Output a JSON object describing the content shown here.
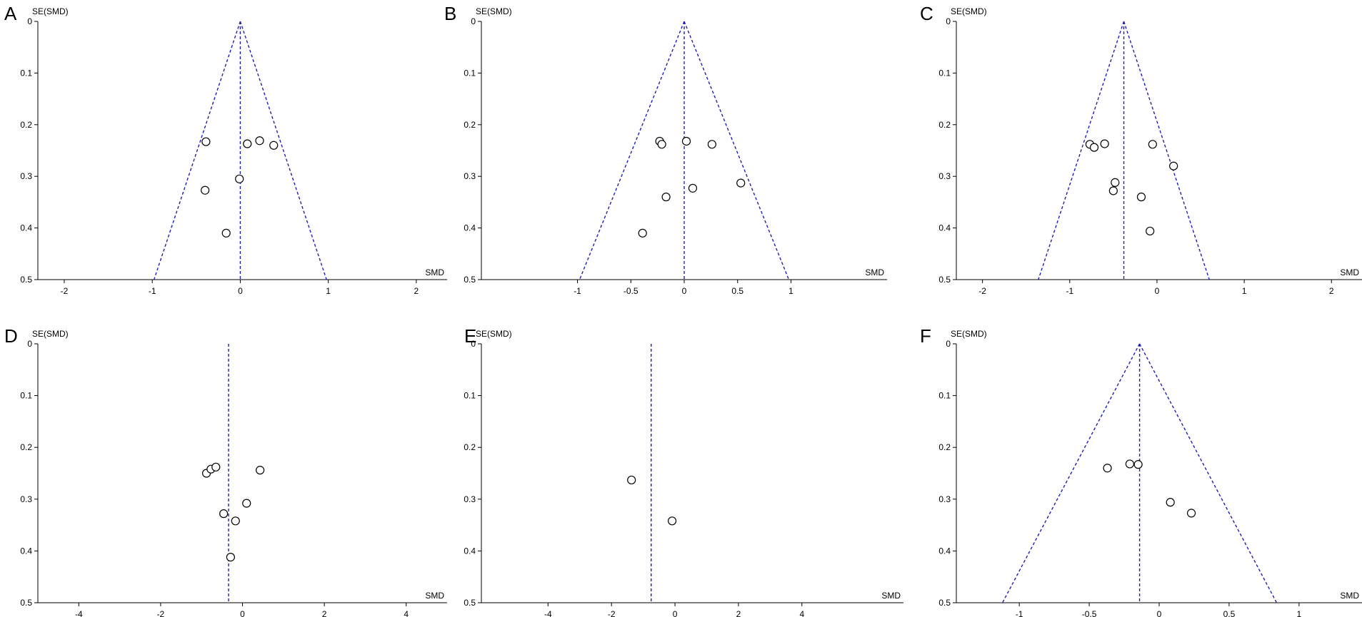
{
  "chart_data": [
    {
      "panel": "A",
      "type": "scatter",
      "xlabel": "SMD",
      "ylabel": "SE(SMD)",
      "xlim": [
        -2.3,
        2.35
      ],
      "ylim": [
        0,
        0.5
      ],
      "y_reversed": true,
      "x_ticks": [
        -2,
        -1,
        0,
        1,
        2
      ],
      "x_tick_labels": [
        "-2",
        "-1",
        "0",
        "1",
        "2"
      ],
      "y_ticks": [
        0,
        0.1,
        0.2,
        0.3,
        0.4,
        0.5
      ],
      "y_tick_labels": [
        "0",
        "0.1",
        "0.2",
        "0.3",
        "0.4",
        "0.5"
      ],
      "pooled_smd": 0.0,
      "funnel": true,
      "points": [
        [
          -0.39,
          0.233
        ],
        [
          0.08,
          0.237
        ],
        [
          0.22,
          0.231
        ],
        [
          0.38,
          0.24
        ],
        [
          -0.4,
          0.327
        ],
        [
          -0.01,
          0.305
        ],
        [
          -0.16,
          0.41
        ]
      ]
    },
    {
      "panel": "B",
      "type": "scatter",
      "xlabel": "SMD",
      "ylabel": "SE(SMD)",
      "xlim": [
        -1.9,
        1.9
      ],
      "ylim": [
        0,
        0.5
      ],
      "y_reversed": true,
      "x_ticks": [
        -1,
        -0.5,
        0,
        0.5,
        1
      ],
      "x_tick_labels": [
        "-1",
        "-0.5",
        "0",
        "0.5",
        "1"
      ],
      "y_ticks": [
        0,
        0.1,
        0.2,
        0.3,
        0.4,
        0.5
      ],
      "y_tick_labels": [
        "0",
        "0.1",
        "0.2",
        "0.3",
        "0.4",
        "0.5"
      ],
      "pooled_smd": 0.0,
      "funnel": true,
      "points": [
        [
          -0.23,
          0.232
        ],
        [
          -0.21,
          0.238
        ],
        [
          0.02,
          0.232
        ],
        [
          0.26,
          0.238
        ],
        [
          0.53,
          0.313
        ],
        [
          0.08,
          0.323
        ],
        [
          -0.17,
          0.34
        ],
        [
          -0.39,
          0.41
        ]
      ]
    },
    {
      "panel": "C",
      "type": "scatter",
      "xlabel": "SMD",
      "ylabel": "SE(SMD)",
      "xlim": [
        -2.3,
        2.35
      ],
      "ylim": [
        0,
        0.5
      ],
      "y_reversed": true,
      "x_ticks": [
        -2,
        -1,
        0,
        1,
        2
      ],
      "x_tick_labels": [
        "-2",
        "-1",
        "0",
        "1",
        "2"
      ],
      "y_ticks": [
        0,
        0.1,
        0.2,
        0.3,
        0.4,
        0.5
      ],
      "y_tick_labels": [
        "0",
        "0.1",
        "0.2",
        "0.3",
        "0.4",
        "0.5"
      ],
      "pooled_smd": -0.38,
      "funnel": true,
      "points": [
        [
          -0.77,
          0.238
        ],
        [
          -0.72,
          0.244
        ],
        [
          -0.6,
          0.237
        ],
        [
          -0.05,
          0.238
        ],
        [
          0.19,
          0.28
        ],
        [
          -0.48,
          0.312
        ],
        [
          -0.5,
          0.328
        ],
        [
          -0.18,
          0.34
        ],
        [
          -0.08,
          0.406
        ]
      ]
    },
    {
      "panel": "D",
      "type": "scatter",
      "xlabel": "SMD",
      "ylabel": "SE(SMD)",
      "xlim": [
        -5,
        5
      ],
      "ylim": [
        0,
        0.5
      ],
      "y_reversed": true,
      "x_ticks": [
        -4,
        -2,
        0,
        2,
        4
      ],
      "x_tick_labels": [
        "-4",
        "-2",
        "0",
        "2",
        "4"
      ],
      "y_ticks": [
        0,
        0.1,
        0.2,
        0.3,
        0.4,
        0.5
      ],
      "y_tick_labels": [
        "0",
        "0.1",
        "0.2",
        "0.3",
        "0.4",
        "0.5"
      ],
      "pooled_smd": -0.34,
      "funnel": false,
      "points": [
        [
          -0.88,
          0.25
        ],
        [
          -0.77,
          0.242
        ],
        [
          -0.65,
          0.238
        ],
        [
          0.43,
          0.244
        ],
        [
          0.1,
          0.308
        ],
        [
          -0.46,
          0.328
        ],
        [
          -0.17,
          0.342
        ],
        [
          -0.29,
          0.412
        ]
      ]
    },
    {
      "panel": "E",
      "type": "scatter",
      "xlabel": "SMD",
      "ylabel": "SE(SMD)",
      "xlim": [
        -6.1,
        7.2
      ],
      "ylim": [
        0,
        0.5
      ],
      "y_reversed": true,
      "x_ticks": [
        -4,
        -2,
        0,
        2,
        4
      ],
      "x_tick_labels": [
        "-4",
        "-2",
        "0",
        "2",
        "4"
      ],
      "y_ticks": [
        0,
        0.1,
        0.2,
        0.3,
        0.4,
        0.5
      ],
      "y_tick_labels": [
        "0",
        "0.1",
        "0.2",
        "0.3",
        "0.4",
        "0.5"
      ],
      "pooled_smd": -0.75,
      "funnel": false,
      "points": [
        [
          -1.37,
          0.263
        ],
        [
          -0.09,
          0.342
        ]
      ]
    },
    {
      "panel": "F",
      "type": "scatter",
      "xlabel": "SMD",
      "ylabel": "SE(SMD)",
      "xlim": [
        -1.45,
        1.45
      ],
      "ylim": [
        0,
        0.5
      ],
      "y_reversed": true,
      "x_ticks": [
        -1,
        -0.5,
        0,
        0.5,
        1
      ],
      "x_tick_labels": [
        "-1",
        "-0.5",
        "0",
        "0.5",
        "1"
      ],
      "y_ticks": [
        0,
        0.1,
        0.2,
        0.3,
        0.4,
        0.5
      ],
      "y_tick_labels": [
        "0",
        "0.1",
        "0.2",
        "0.3",
        "0.4",
        "0.5"
      ],
      "pooled_smd": -0.14,
      "funnel": true,
      "points": [
        [
          -0.37,
          0.24
        ],
        [
          -0.21,
          0.232
        ],
        [
          -0.15,
          0.233
        ],
        [
          0.08,
          0.306
        ],
        [
          0.23,
          0.327
        ]
      ]
    }
  ]
}
